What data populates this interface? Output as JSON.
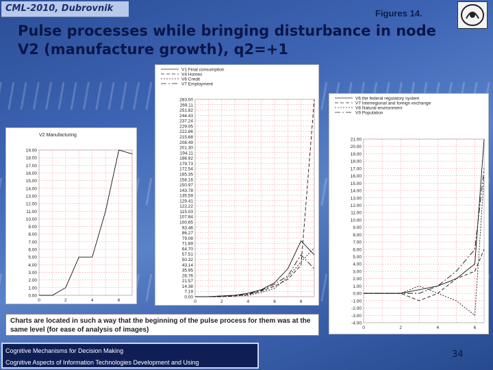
{
  "header": {
    "conference": "CML-2010, Dubrovnik",
    "figure_label": "Figures 14.",
    "title_line1": "Pulse processes while bringing disturbance in node",
    "title_line2": "V2 (manufacture growth), q2=+1"
  },
  "caption": "Charts are located in such a way that the beginning of the pulse process for them was at the same level (for ease of analysis of images)",
  "footer": {
    "line1": "Cognitive Mechanisms for Decision Making",
    "line2": "Cognitive Aspects of Information Technologies Development and Using"
  },
  "page_number": "34",
  "logo_icon": "seal-icon",
  "chart_data": [
    {
      "type": "line",
      "title": "V2 Manufacturing",
      "x_ticks": [
        "0",
        "2",
        "4",
        "6"
      ],
      "y_ticks": [
        "19.00",
        "18.00",
        "17.00",
        "16.00",
        "15.00",
        "14.00",
        "13.00",
        "12.00",
        "11.00",
        "10.00",
        "9.00",
        "8.00",
        "7.00",
        "6.00",
        "5.00",
        "4.00",
        "3.00",
        "2.00",
        "1.00",
        "0.00"
      ],
      "ylim": [
        0,
        19
      ],
      "xlim": [
        0,
        7
      ],
      "series": [
        {
          "name": "V2 Manufacturing",
          "x": [
            0,
            1,
            2,
            3,
            4,
            5,
            6,
            7
          ],
          "y": [
            0,
            0,
            1,
            5,
            5,
            11,
            19,
            18.5
          ]
        }
      ]
    },
    {
      "type": "line",
      "legend": [
        "V1 Final consumption",
        "V4 Homes",
        "V6 Credit",
        "V7 Employment"
      ],
      "x_ticks": [
        "0",
        "2",
        "4",
        "6",
        "8"
      ],
      "y_ticks": [
        "283.00",
        "269.11",
        "251.82",
        "244.43",
        "237.24",
        "229.05",
        "222.86",
        "215.68",
        "208.49",
        "201.30",
        "194.11",
        "186.92",
        "179.73",
        "172.54",
        "165.35",
        "158.16",
        "150.97",
        "143.78",
        "135.59",
        "129.41",
        "122.22",
        "115.03",
        "107.84",
        "100.65",
        "93.46",
        "86.27",
        "79.08",
        "71.89",
        "64.70",
        "57.51",
        "50.32",
        "43.14",
        "35.95",
        "28.76",
        "21.57",
        "14.38",
        "7.19",
        "0.00"
      ],
      "ylim": [
        0,
        283
      ],
      "xlim": [
        0,
        9
      ],
      "series": [
        {
          "name": "V1 Final consumption",
          "x": [
            0,
            1,
            2,
            3,
            4,
            5,
            6,
            7,
            8,
            9
          ],
          "y": [
            0,
            0,
            1,
            2,
            5,
            10,
            20,
            40,
            80,
            60
          ]
        },
        {
          "name": "V4 Homes",
          "x": [
            0,
            1,
            2,
            3,
            4,
            5,
            6,
            7,
            8,
            9
          ],
          "y": [
            0,
            0,
            0,
            1,
            3,
            8,
            15,
            25,
            45,
            283
          ]
        },
        {
          "name": "V6 Credit",
          "x": [
            0,
            1,
            2,
            3,
            4,
            5,
            6,
            7,
            8,
            9
          ],
          "y": [
            0,
            0,
            0,
            1,
            2,
            6,
            12,
            28,
            50,
            70
          ]
        },
        {
          "name": "V7 Employment",
          "x": [
            0,
            1,
            2,
            3,
            4,
            5,
            6,
            7,
            8,
            9
          ],
          "y": [
            0,
            0,
            1,
            2,
            4,
            9,
            18,
            30,
            60,
            40
          ]
        }
      ]
    },
    {
      "type": "line",
      "legend": [
        "V6 the federal regulatory system",
        "V7 Interregional and foreign exchange",
        "V8 Natural environment",
        "V9 Population"
      ],
      "x_ticks": [
        "0",
        "2",
        "4",
        "6"
      ],
      "y_ticks": [
        "21.00",
        "20.00",
        "19.00",
        "18.00",
        "17.00",
        "16.00",
        "15.00",
        "14.00",
        "13.00",
        "12.00",
        "11.00",
        "10.00",
        "9.00",
        "8.00",
        "7.00",
        "6.00",
        "5.00",
        "4.00",
        "3.00",
        "2.00",
        "1.00",
        "0.00",
        "-1.00",
        "-2.00",
        "-3.00",
        "-4.00"
      ],
      "ylim": [
        -4,
        21
      ],
      "xlim": [
        0,
        6.5
      ],
      "series": [
        {
          "name": "V6 the federal regulatory system",
          "x": [
            0,
            1,
            2,
            3,
            4,
            5,
            6,
            6.5
          ],
          "y": [
            0,
            0,
            0,
            0.5,
            1,
            2,
            4,
            21
          ]
        },
        {
          "name": "V7 Interregional and foreign exchange",
          "x": [
            0,
            1,
            2,
            3,
            4,
            5,
            6,
            6.5
          ],
          "y": [
            0,
            0,
            0,
            -1,
            0,
            2,
            3,
            6
          ]
        },
        {
          "name": "V8 Natural environment",
          "x": [
            0,
            1,
            2,
            3,
            4,
            5,
            6,
            6.5
          ],
          "y": [
            0,
            0,
            0,
            1,
            0,
            -1,
            -3,
            16
          ]
        },
        {
          "name": "V9 Population",
          "x": [
            0,
            1,
            2,
            3,
            4,
            5,
            6,
            6.5
          ],
          "y": [
            0,
            0,
            0,
            0,
            1,
            3,
            6,
            17
          ]
        }
      ]
    }
  ]
}
